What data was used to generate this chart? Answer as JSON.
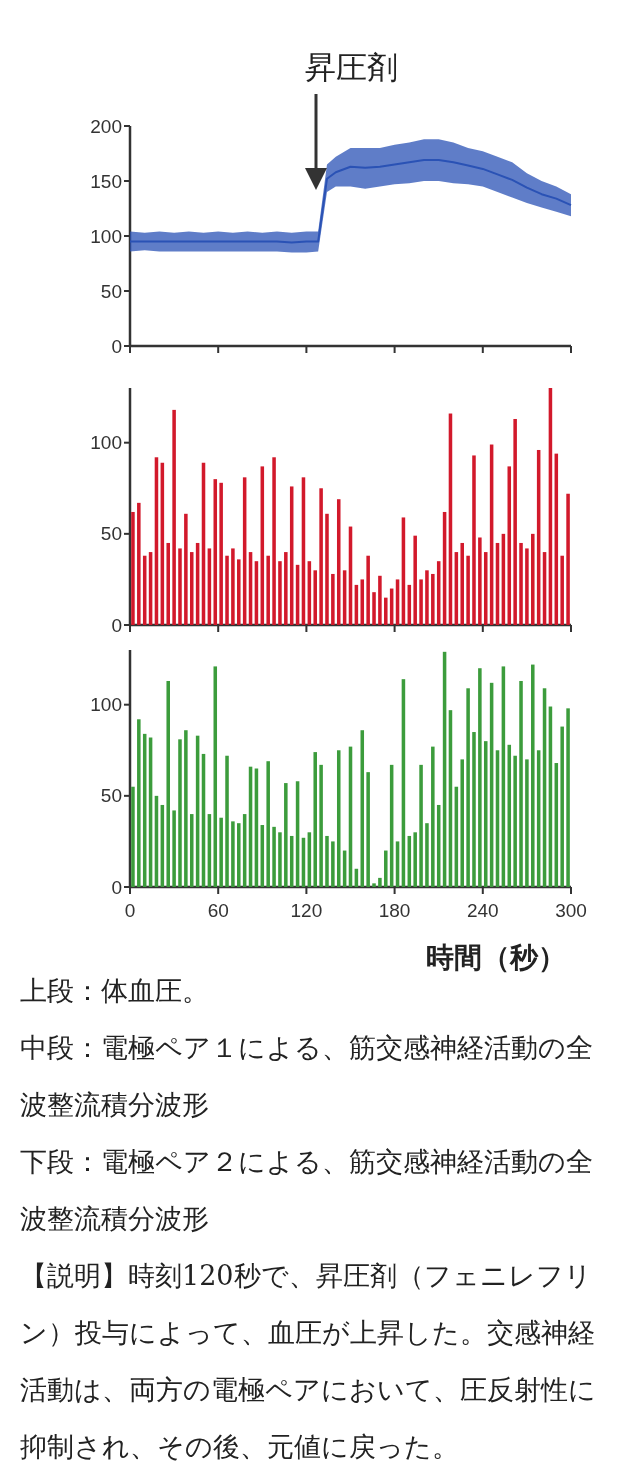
{
  "chart_data": [
    {
      "type": "line",
      "x": [
        0,
        10,
        20,
        30,
        40,
        50,
        60,
        70,
        80,
        90,
        100,
        110,
        120,
        128,
        134,
        140,
        150,
        160,
        170,
        180,
        190,
        200,
        210,
        220,
        230,
        240,
        250,
        260,
        270,
        280,
        290,
        300
      ],
      "series": [
        {
          "color": "#2a52b5",
          "values": [
            95,
            95,
            95,
            95,
            95,
            95,
            95,
            95,
            95,
            95,
            95,
            94,
            95,
            95,
            152,
            158,
            163,
            162,
            163,
            165,
            167,
            169,
            169,
            167,
            164,
            161,
            156,
            151,
            144,
            138,
            134,
            128
          ],
          "lower": [
            86,
            87,
            86,
            86,
            86,
            86,
            86,
            86,
            86,
            86,
            86,
            85,
            85,
            86,
            140,
            145,
            145,
            143,
            145,
            147,
            148,
            150,
            150,
            148,
            147,
            145,
            140,
            135,
            130,
            126,
            122,
            118
          ],
          "upper": [
            104,
            103,
            104,
            103,
            104,
            103,
            104,
            103,
            104,
            103,
            104,
            103,
            104,
            104,
            165,
            172,
            180,
            180,
            180,
            183,
            185,
            188,
            188,
            185,
            180,
            177,
            172,
            167,
            157,
            150,
            145,
            138
          ]
        }
      ],
      "xlim": [
        0,
        300
      ],
      "ylim": [
        0,
        200
      ],
      "xticks": [
        0,
        60,
        120,
        180,
        240,
        300
      ],
      "yticks": [
        0,
        50,
        100,
        150,
        200
      ],
      "tick_labels": "y",
      "annotations": [
        "昇圧剤"
      ]
    },
    {
      "type": "bar",
      "color": "#d2192b",
      "x": [
        2,
        6,
        10,
        14,
        18,
        22,
        26,
        30,
        34,
        38,
        42,
        46,
        50,
        54,
        58,
        62,
        66,
        70,
        74,
        78,
        82,
        86,
        90,
        94,
        98,
        102,
        106,
        110,
        114,
        118,
        122,
        126,
        130,
        134,
        138,
        142,
        146,
        150,
        154,
        158,
        162,
        166,
        170,
        174,
        178,
        182,
        186,
        190,
        194,
        198,
        202,
        206,
        210,
        214,
        218,
        222,
        226,
        230,
        234,
        238,
        242,
        246,
        250,
        254,
        258,
        262,
        266,
        270,
        274,
        278,
        282,
        286,
        290,
        294,
        298
      ],
      "values": [
        62,
        67,
        38,
        40,
        92,
        89,
        45,
        118,
        42,
        61,
        40,
        45,
        89,
        42,
        80,
        78,
        38,
        42,
        36,
        81,
        40,
        35,
        87,
        38,
        92,
        35,
        40,
        76,
        33,
        81,
        35,
        30,
        75,
        61,
        28,
        69,
        30,
        54,
        22,
        25,
        38,
        18,
        27,
        15,
        20,
        25,
        59,
        22,
        49,
        25,
        30,
        28,
        35,
        62,
        116,
        40,
        45,
        38,
        93,
        48,
        40,
        99,
        45,
        50,
        87,
        113,
        45,
        42,
        50,
        96,
        40,
        130,
        94,
        38,
        72
      ],
      "xlim": [
        0,
        300
      ],
      "ylim": [
        0,
        130
      ],
      "xticks": [
        0,
        60,
        120,
        180,
        240,
        300
      ],
      "yticks": [
        0,
        50,
        100
      ],
      "tick_labels": "y"
    },
    {
      "type": "bar",
      "color": "#3c9c3c",
      "x": [
        2,
        6,
        10,
        14,
        18,
        22,
        26,
        30,
        34,
        38,
        42,
        46,
        50,
        54,
        58,
        62,
        66,
        70,
        74,
        78,
        82,
        86,
        90,
        94,
        98,
        102,
        106,
        110,
        114,
        118,
        122,
        126,
        130,
        134,
        138,
        142,
        146,
        150,
        154,
        158,
        162,
        166,
        170,
        174,
        178,
        182,
        186,
        190,
        194,
        198,
        202,
        206,
        210,
        214,
        218,
        222,
        226,
        230,
        234,
        238,
        242,
        246,
        250,
        254,
        258,
        262,
        266,
        270,
        274,
        278,
        282,
        286,
        290,
        294,
        298
      ],
      "values": [
        55,
        92,
        84,
        82,
        50,
        45,
        113,
        42,
        81,
        86,
        40,
        83,
        73,
        40,
        121,
        38,
        72,
        36,
        35,
        40,
        66,
        65,
        34,
        69,
        33,
        30,
        57,
        28,
        58,
        27,
        30,
        74,
        67,
        28,
        25,
        75,
        20,
        77,
        10,
        86,
        63,
        2,
        5,
        20,
        67,
        25,
        114,
        28,
        30,
        67,
        35,
        77,
        45,
        129,
        97,
        55,
        70,
        109,
        85,
        120,
        80,
        112,
        75,
        121,
        78,
        72,
        113,
        70,
        122,
        75,
        109,
        99,
        68,
        88,
        98
      ],
      "xlim": [
        0,
        300
      ],
      "ylim": [
        0,
        130
      ],
      "xticks": [
        0,
        60,
        120,
        180,
        240,
        300
      ],
      "yticks": [
        0,
        50,
        100
      ],
      "xlabel": "時間（秒）",
      "annotations": [
        "上段：体血圧。",
        "中段：電極ペア１による、筋交感神経活動の全波整流積分波形",
        "下段：電極ペア２による、筋交感神経活動の全波整流積分波形",
        "【説明】時刻120秒で、昇圧剤（フェニレフリン）投与によって、血圧が上昇した。交感神経活動は、両方の電極ペアにおいて、圧反射性に抑制され、その後、元値に戻った。"
      ]
    }
  ]
}
